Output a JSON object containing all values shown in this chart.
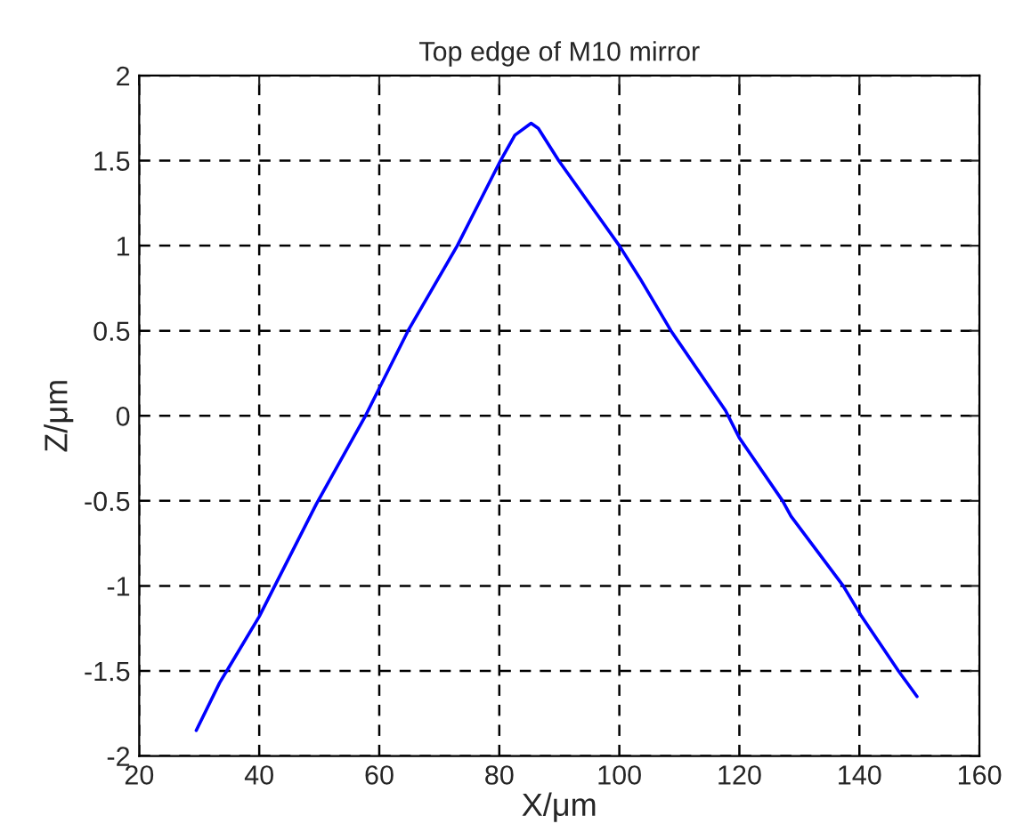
{
  "chart_data": {
    "type": "line",
    "title": "Top edge of M10 mirror",
    "xlabel": "X/μm",
    "ylabel": "Z/μm",
    "x": [
      29.5,
      33.4,
      40,
      49.5,
      57.7,
      64.8,
      73,
      80.2,
      82.6,
      85.3,
      86.5,
      89.9,
      100,
      103.4,
      108.6,
      117.7,
      120,
      127.2,
      128.6,
      137.3,
      140.2,
      146.5,
      149.6
    ],
    "series": [
      {
        "color": "#0000ff",
        "values": [
          -1.85,
          -1.57,
          -1.18,
          -0.52,
          0,
          0.5,
          1.0,
          1.5,
          1.65,
          1.72,
          1.69,
          1.5,
          1.0,
          0.81,
          0.5,
          0.03,
          -0.13,
          -0.5,
          -0.59,
          -1.0,
          -1.17,
          -1.5,
          -1.65
        ]
      }
    ],
    "xlim": [
      20,
      160
    ],
    "xticks": [
      20,
      40,
      60,
      80,
      100,
      120,
      140,
      160
    ],
    "ylim": [
      -2,
      2
    ],
    "yticks": [
      -2,
      -1.5,
      -1,
      -0.5,
      0,
      0.5,
      1,
      1.5,
      2
    ],
    "grid": true,
    "line_style": "solid"
  }
}
